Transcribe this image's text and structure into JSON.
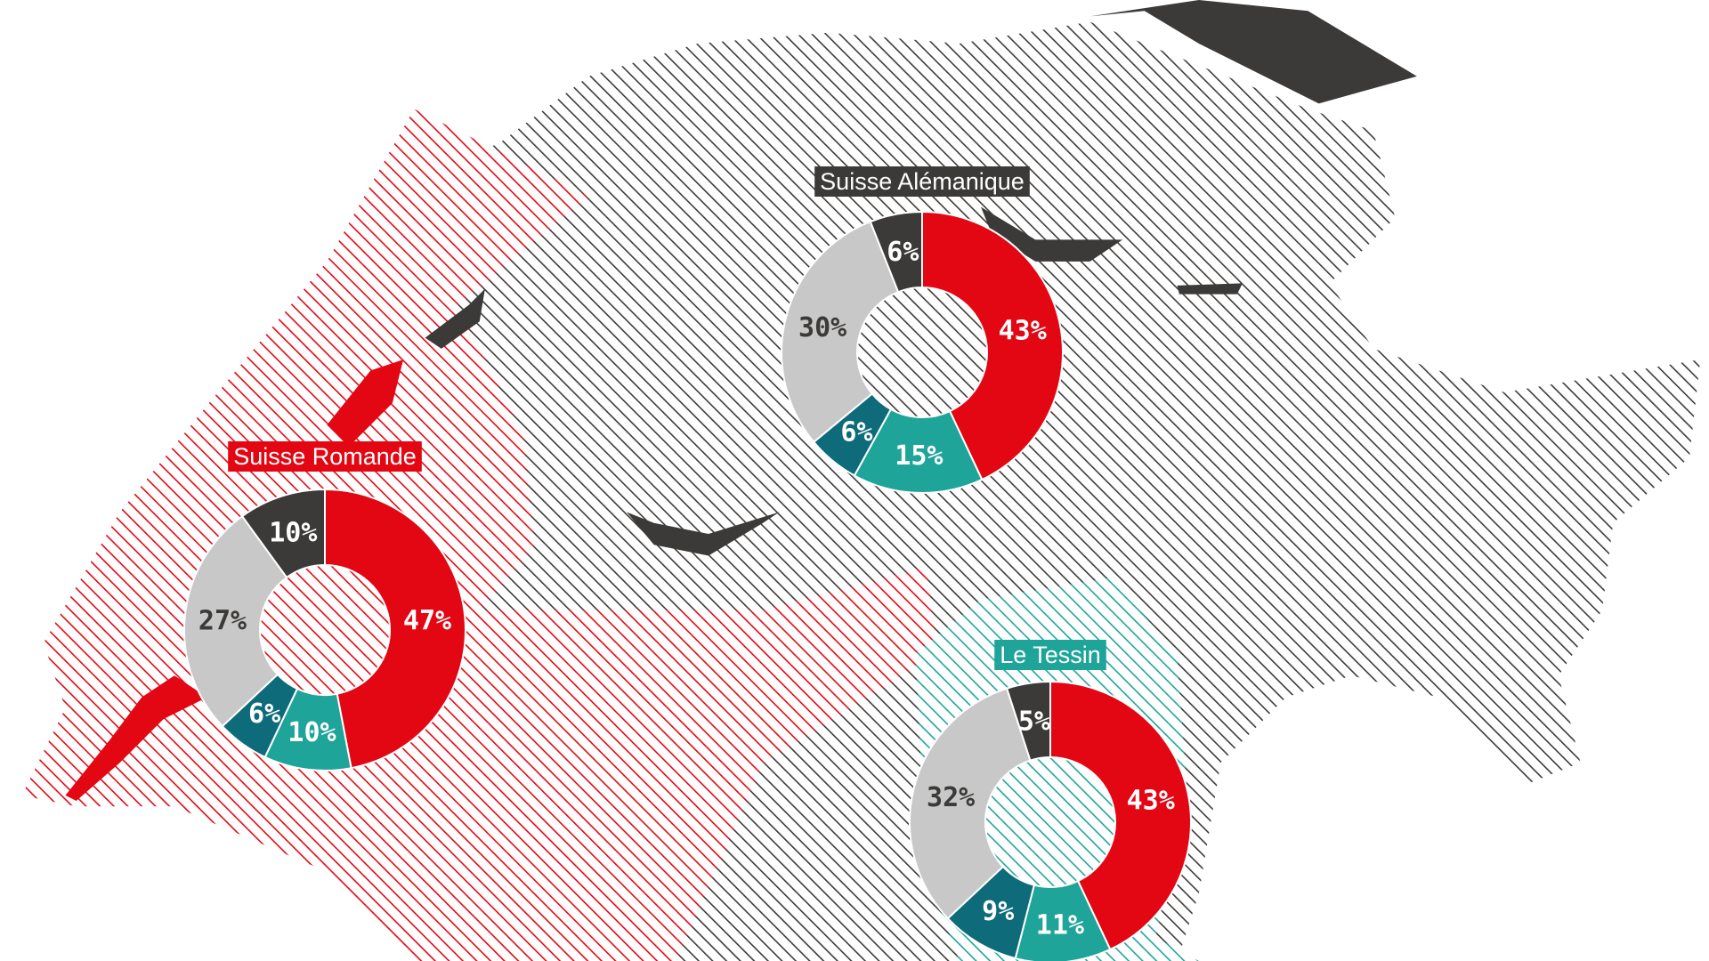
{
  "chart_data": [
    {
      "type": "pie",
      "title": "Suisse Alémanique",
      "title_color": "#3c3a38",
      "values": [
        43,
        15,
        6,
        30,
        6
      ],
      "value_labels": [
        "43%",
        "15%",
        "6%",
        "30%",
        "6%"
      ],
      "colors": [
        "#e30613",
        "#1fa49a",
        "#0d6b7a",
        "#c8c8c8",
        "#3c3a38"
      ]
    },
    {
      "type": "pie",
      "title": "Suisse Romande",
      "title_color": "#e30613",
      "values": [
        47,
        10,
        6,
        27,
        10
      ],
      "value_labels": [
        "47%",
        "10%",
        "6%",
        "27%",
        "10%"
      ],
      "colors": [
        "#e30613",
        "#1fa49a",
        "#0d6b7a",
        "#c8c8c8",
        "#3c3a38"
      ]
    },
    {
      "type": "pie",
      "title": "Le Tessin",
      "title_color": "#1fa49a",
      "values": [
        43,
        11,
        9,
        32,
        5
      ],
      "value_labels": [
        "43%",
        "11%",
        "9%",
        "32%",
        "5%"
      ],
      "colors": [
        "#e30613",
        "#1fa49a",
        "#0d6b7a",
        "#c8c8c8",
        "#3c3a38"
      ]
    }
  ]
}
